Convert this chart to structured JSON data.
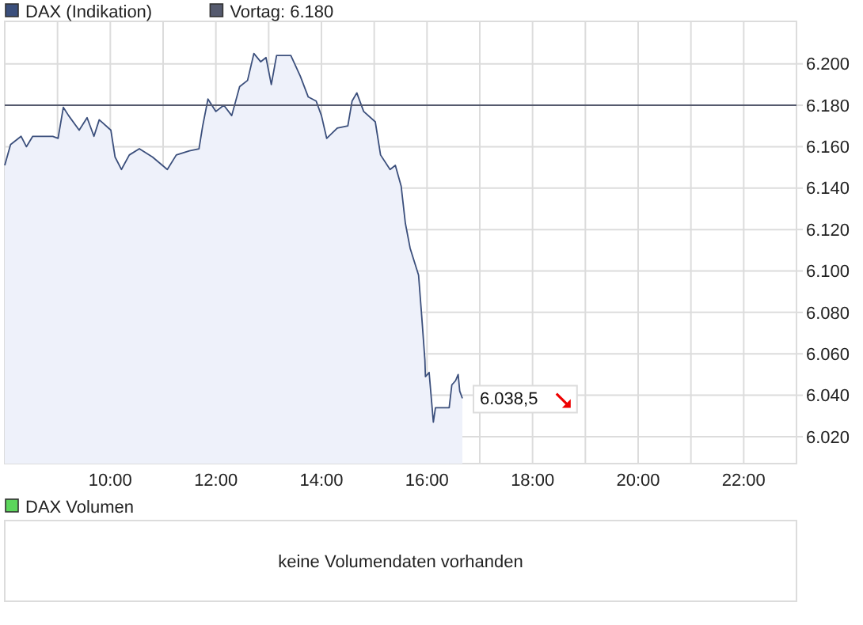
{
  "chart_data": [
    {
      "type": "area",
      "xlim": [
        8,
        23
      ],
      "ylim": [
        6007,
        6220.5
      ],
      "xticks": [
        {
          "value": 9,
          "label": null
        },
        {
          "value": 10,
          "label": "10:00"
        },
        {
          "value": 11,
          "label": null
        },
        {
          "value": 12,
          "label": "12:00"
        },
        {
          "value": 13,
          "label": null
        },
        {
          "value": 14,
          "label": "14:00"
        },
        {
          "value": 15,
          "label": null
        },
        {
          "value": 16,
          "label": "16:00"
        },
        {
          "value": 17,
          "label": null
        },
        {
          "value": 18,
          "label": "18:00"
        },
        {
          "value": 19,
          "label": null
        },
        {
          "value": 20,
          "label": "20:00"
        },
        {
          "value": 21,
          "label": null
        },
        {
          "value": 22,
          "label": "22:00"
        }
      ],
      "yticks": [
        {
          "value": 6020,
          "label": "6.020"
        },
        {
          "value": 6040,
          "label": "6.040"
        },
        {
          "value": 6060,
          "label": "6.060"
        },
        {
          "value": 6080,
          "label": "6.080"
        },
        {
          "value": 6100,
          "label": "6.100"
        },
        {
          "value": 6120,
          "label": "6.120"
        },
        {
          "value": 6140,
          "label": "6.140"
        },
        {
          "value": 6160,
          "label": "6.160"
        },
        {
          "value": 6180,
          "label": "6.180"
        },
        {
          "value": 6200,
          "label": "6.200"
        }
      ],
      "grid": true,
      "legend": "top left",
      "series": [
        {
          "name": "DAX (Indikation)",
          "color": "#3b4f7c",
          "x": [
            8.0,
            8.11,
            8.31,
            8.41,
            8.53,
            8.91,
            9.01,
            9.11,
            9.21,
            9.41,
            9.56,
            9.69,
            9.79,
            10.01,
            10.09,
            10.21,
            10.36,
            10.55,
            10.8,
            11.08,
            11.25,
            11.5,
            11.68,
            11.75,
            11.85,
            12.0,
            12.15,
            12.3,
            12.45,
            12.6,
            12.72,
            12.85,
            12.95,
            13.05,
            13.15,
            13.42,
            13.6,
            13.75,
            13.9,
            14.0,
            14.1,
            14.3,
            14.5,
            14.58,
            14.67,
            14.8,
            15.02,
            15.12,
            15.3,
            15.4,
            15.51,
            15.59,
            15.68,
            15.84,
            15.9,
            15.96,
            15.97,
            16.04,
            16.1,
            16.12,
            16.16,
            16.42,
            16.47,
            16.54,
            16.59,
            16.62,
            16.67
          ],
          "values": [
            6151,
            6161,
            6165,
            6160,
            6165,
            6165,
            6164,
            6179,
            6175,
            6168,
            6174,
            6165,
            6173,
            6168,
            6155,
            6149,
            6156,
            6159,
            6155,
            6149,
            6156,
            6158,
            6159,
            6170,
            6183,
            6177,
            6180,
            6175,
            6189,
            6192,
            6205,
            6201,
            6203,
            6190,
            6204,
            6204,
            6194,
            6184,
            6182,
            6175,
            6164,
            6169,
            6170,
            6182,
            6186,
            6177,
            6172,
            6156,
            6149,
            6151,
            6141,
            6123,
            6111,
            6098,
            6078,
            6057,
            6049,
            6051,
            6033,
            6027,
            6034,
            6034,
            6045,
            6047,
            6050,
            6042,
            6038.5
          ]
        }
      ],
      "ref_lines": [
        {
          "axis": "y",
          "value": 6180,
          "label": "Vortag: 6.180",
          "color": "#555a6e"
        }
      ],
      "annotations": [
        {
          "text": "6.038,5",
          "x": 16.67,
          "y": 6038.5
        }
      ]
    },
    {
      "type": "other",
      "title": "DAX Volumen",
      "annotations": [
        "keine Volumendaten vorhanden"
      ]
    }
  ]
}
